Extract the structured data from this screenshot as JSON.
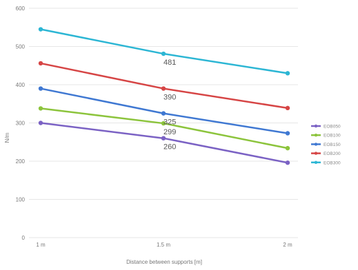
{
  "chart_data": {
    "type": "line",
    "title": "",
    "xlabel": "Distance between supports [m]",
    "ylabel": "N/m",
    "categories": [
      "1 m",
      "1.5 m",
      "2 m"
    ],
    "ylim": [
      0,
      600
    ],
    "yticks": [
      0,
      100,
      200,
      300,
      400,
      500,
      600
    ],
    "grid": "horizontal",
    "legend_position": "right",
    "series": [
      {
        "name": "EOB050",
        "color": "#7b62c4",
        "values": [
          300,
          260,
          196
        ]
      },
      {
        "name": "EOB100",
        "color": "#8cc43c",
        "values": [
          338,
          299,
          234
        ]
      },
      {
        "name": "EOB150",
        "color": "#3f78d2",
        "values": [
          390,
          325,
          273
        ]
      },
      {
        "name": "EOB200",
        "color": "#d64545",
        "values": [
          456,
          390,
          339
        ]
      },
      {
        "name": "EOB300",
        "color": "#2cb6d4",
        "values": [
          545,
          481,
          430
        ]
      }
    ],
    "annotations": [
      {
        "series": 4,
        "point": 1,
        "text": "481"
      },
      {
        "series": 3,
        "point": 1,
        "text": "390"
      },
      {
        "series": 2,
        "point": 1,
        "text": "325"
      },
      {
        "series": 1,
        "point": 1,
        "text": "299"
      },
      {
        "series": 0,
        "point": 1,
        "text": "260"
      }
    ]
  }
}
